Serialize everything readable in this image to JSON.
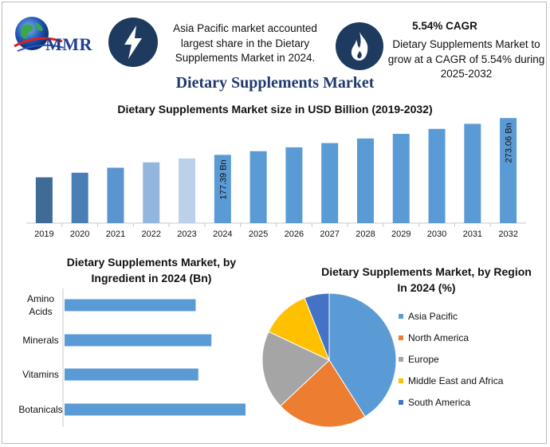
{
  "header": {
    "logo_text": "MMR",
    "stat_left": "Asia Pacific market accounted largest share in the Dietary Supplements Market in 2024.",
    "cagr_title": "5.54% CAGR",
    "stat_right": "Dietary Supplements Market to grow at a CAGR of 5.54% during 2025-2032",
    "main_title": "Dietary Supplements Market",
    "icons": [
      "globe-logo",
      "lightning-icon",
      "flame-icon"
    ]
  },
  "chart_data": [
    {
      "type": "bar",
      "title": "Dietary Supplements Market size in USD Billion (2019-2032)",
      "categories": [
        "2019",
        "2020",
        "2021",
        "2022",
        "2023",
        "2024",
        "2025",
        "2026",
        "2027",
        "2028",
        "2029",
        "2030",
        "2031",
        "2032"
      ],
      "values": [
        119,
        131,
        144,
        158,
        168,
        177.39,
        187,
        197,
        208,
        220,
        232,
        245,
        258,
        273.06
      ],
      "data_labels": {
        "2024": "177.39 Bn",
        "2032": "273.06 Bn"
      },
      "colors": [
        "#3f6b96",
        "#4a7fb5",
        "#5b95cf",
        "#93b6df",
        "#bcd0ea",
        "#5b9bd5",
        "#5b9bd5",
        "#5b9bd5",
        "#5b9bd5",
        "#5b9bd5",
        "#5b9bd5",
        "#5b9bd5",
        "#5b9bd5",
        "#5b9bd5"
      ],
      "ylim": [
        0,
        290
      ]
    },
    {
      "type": "bar",
      "orientation": "horizontal",
      "title": "Dietary Supplements Market, by Ingredient in 2024 (Bn)",
      "categories": [
        "Amino Acids",
        "Minerals",
        "Vitamins",
        "Botanicals"
      ],
      "values": [
        50,
        56,
        51,
        69
      ],
      "xlim": [
        0,
        75
      ],
      "color": "#5b9bd5"
    },
    {
      "type": "pie",
      "title": "Dietary Supplements Market, by Region In 2024 (%)",
      "labels": [
        "Asia Pacific",
        "North America",
        "Europe",
        "Middle East and Africa",
        "South America"
      ],
      "values": [
        41,
        22,
        19,
        12,
        6
      ],
      "colors": [
        "#5b9bd5",
        "#ed7d31",
        "#a5a5a5",
        "#ffc000",
        "#4472c4"
      ],
      "legend": "right"
    }
  ]
}
